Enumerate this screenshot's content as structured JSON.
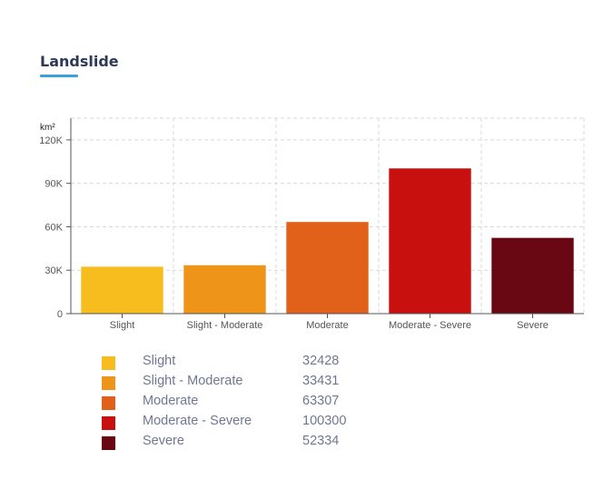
{
  "page": {
    "title": "Landslide"
  },
  "chart_data": {
    "type": "bar",
    "unit_label": "km²",
    "categories": [
      "Slight",
      "Slight - Moderate",
      "Moderate",
      "Moderate - Severe",
      "Severe"
    ],
    "values": [
      32428,
      33431,
      63307,
      100300,
      52334
    ],
    "colors": [
      "#f7bd1e",
      "#ee9418",
      "#e2611a",
      "#c8100f",
      "#690812"
    ],
    "ylim": [
      0,
      135000
    ],
    "yticks": [
      0,
      30000,
      60000,
      90000,
      120000
    ],
    "ytick_labels": [
      "0",
      "30K",
      "60K",
      "90K",
      "120K"
    ],
    "grid": true,
    "legend": [
      {
        "label": "Slight",
        "value": "32428"
      },
      {
        "label": "Slight - Moderate",
        "value": "33431"
      },
      {
        "label": "Moderate",
        "value": "63307"
      },
      {
        "label": "Moderate - Severe",
        "value": "100300"
      },
      {
        "label": "Severe",
        "value": "52334"
      }
    ]
  }
}
